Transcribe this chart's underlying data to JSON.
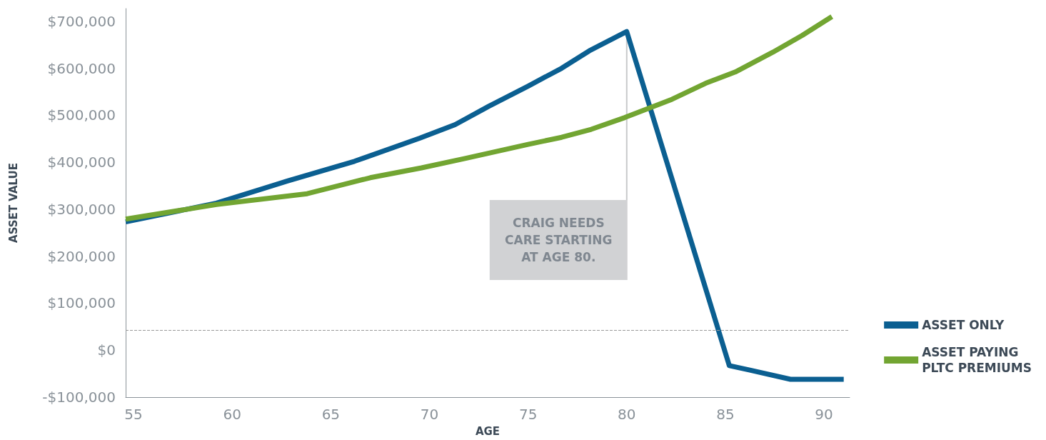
{
  "chart_data": {
    "type": "line",
    "xlabel": "AGE",
    "ylabel": "ASSET VALUE",
    "x": [
      54.6,
      59.2,
      62.8,
      66.2,
      69.5,
      71.3,
      73.0,
      75.0,
      76.7,
      78.1,
      80.0,
      85.2,
      86.2,
      88.3,
      91.0
    ],
    "series": [
      {
        "name": "ASSET ONLY",
        "color": "#0b5f91",
        "values": [
          273000,
          313000,
          360000,
          402000,
          451000,
          480000,
          519000,
          562000,
          600000,
          637000,
          678000,
          -33000,
          -42000,
          -62000,
          -62000
        ]
      },
      {
        "name": "ASSET PAYING PLTC PREMIUMS",
        "color": "#72a532",
        "x": [
          54.6,
          59.2,
          63.8,
          67.0,
          69.6,
          71.8,
          75.0,
          76.7,
          78.2,
          79.9,
          82.3,
          84.0,
          85.5,
          87.4,
          88.9,
          90.4
        ],
        "values": [
          279000,
          310000,
          333000,
          367000,
          388000,
          408000,
          438000,
          453000,
          470000,
          495000,
          534000,
          568000,
          592000,
          634000,
          670000,
          710000
        ]
      }
    ],
    "xlim": [
      54.6,
      91.3
    ],
    "xticks": [
      55,
      60,
      65,
      70,
      75,
      80,
      85,
      90
    ],
    "ylim": [
      -100000,
      727000
    ],
    "yticks": [
      {
        "value": -100000,
        "label": "-$100,000"
      },
      {
        "value": 0,
        "label": "$0"
      },
      {
        "value": 100000,
        "label": "$100,000"
      },
      {
        "value": 200000,
        "label": "$200,000"
      },
      {
        "value": 300000,
        "label": "$300,000"
      },
      {
        "value": 400000,
        "label": "$400,000"
      },
      {
        "value": 500000,
        "label": "$500,000"
      },
      {
        "value": 600000,
        "label": "$600,000"
      },
      {
        "value": 700000,
        "label": "$700,000"
      }
    ],
    "ref_lines": [
      {
        "axis": "y",
        "value": 43000,
        "color": "#999999",
        "line_style": "dashed"
      }
    ],
    "annotations": [
      "CRAIG NEEDS\nCARE STARTING\nAT AGE 80."
    ],
    "grid": false,
    "legend": "right",
    "marker": "none",
    "line_style": "solid"
  }
}
